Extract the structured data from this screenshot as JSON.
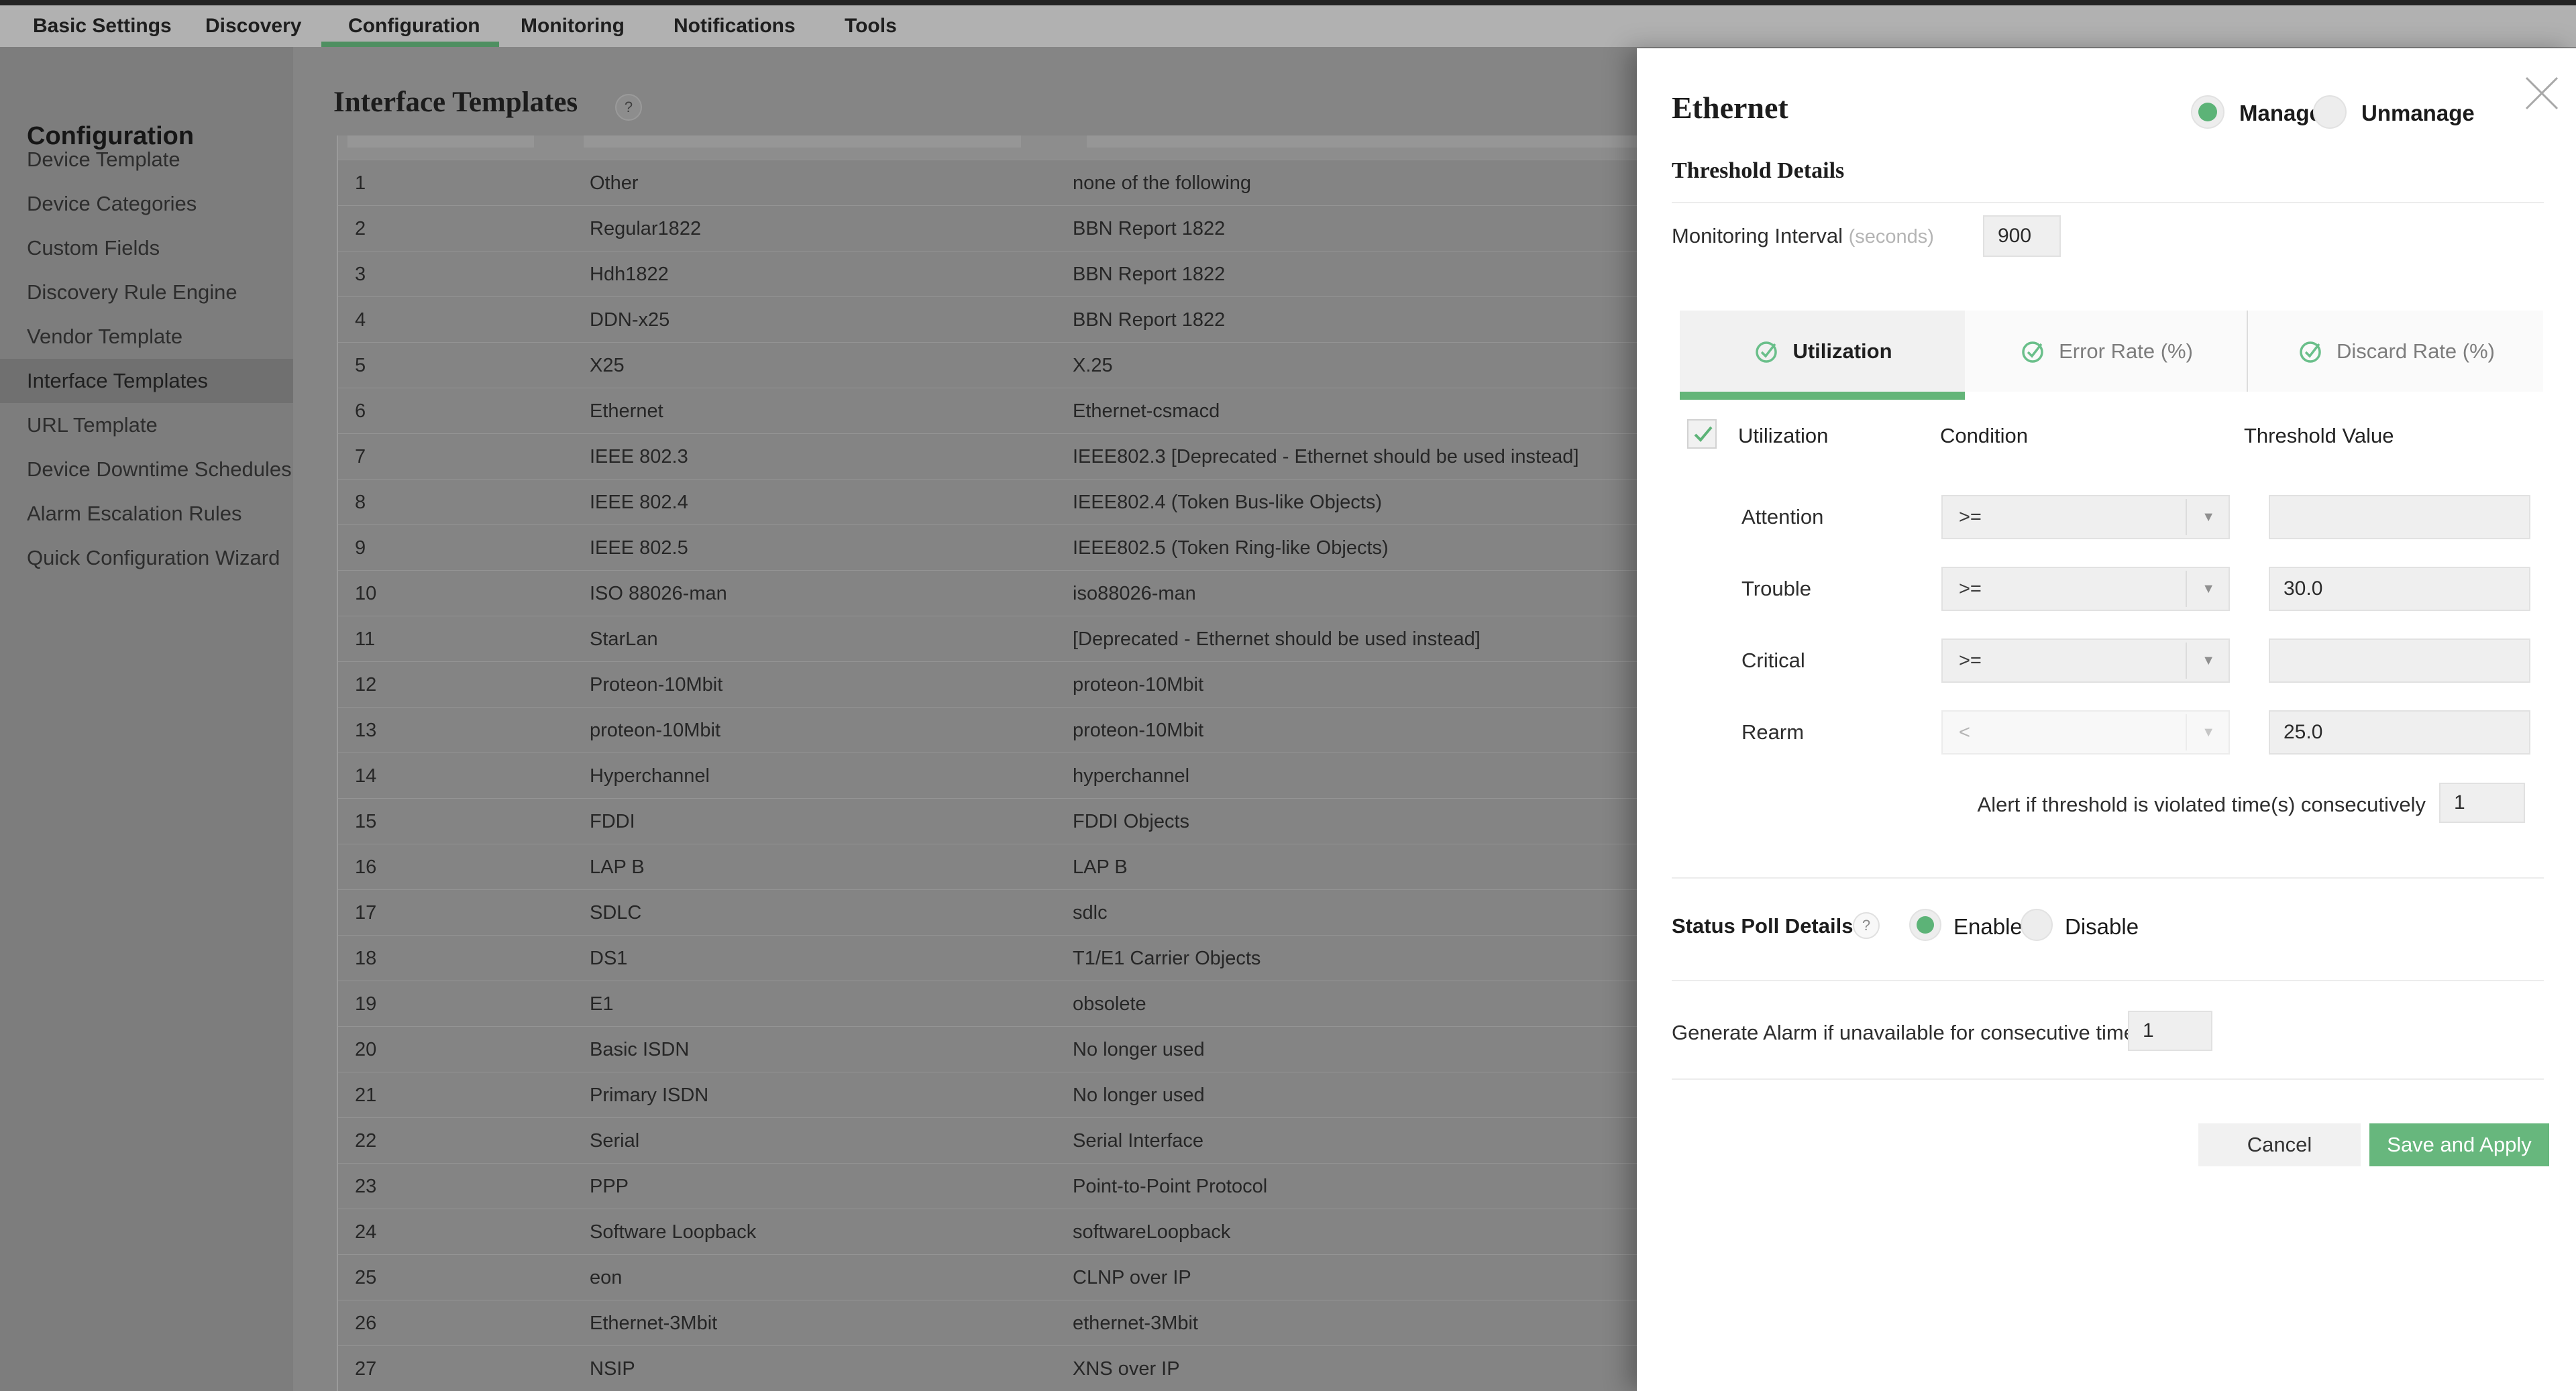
{
  "topnav": {
    "items": [
      {
        "label": "Basic Settings",
        "active": false
      },
      {
        "label": "Discovery",
        "active": false
      },
      {
        "label": "Configuration",
        "active": true
      },
      {
        "label": "Monitoring",
        "active": false
      },
      {
        "label": "Notifications",
        "active": false
      },
      {
        "label": "Tools",
        "active": false
      }
    ]
  },
  "sidebar": {
    "title": "Configuration",
    "items": [
      {
        "label": "Device Template",
        "selected": false
      },
      {
        "label": "Device Categories",
        "selected": false
      },
      {
        "label": "Custom Fields",
        "selected": false
      },
      {
        "label": "Discovery Rule Engine",
        "selected": false
      },
      {
        "label": "Vendor Template",
        "selected": false
      },
      {
        "label": "Interface Templates",
        "selected": true
      },
      {
        "label": "URL Template",
        "selected": false
      },
      {
        "label": "Device Downtime Schedules",
        "selected": false
      },
      {
        "label": "Alarm Escalation Rules",
        "selected": false
      },
      {
        "label": "Quick Configuration Wizard",
        "selected": false
      }
    ]
  },
  "main": {
    "title": "Interface Templates",
    "help_icon": "?"
  },
  "table": {
    "rows": [
      {
        "num": "1",
        "name": "Other",
        "desc": "none of the following"
      },
      {
        "num": "2",
        "name": "Regular1822",
        "desc": "BBN Report 1822"
      },
      {
        "num": "3",
        "name": "Hdh1822",
        "desc": "BBN Report 1822"
      },
      {
        "num": "4",
        "name": "DDN-x25",
        "desc": "BBN Report 1822"
      },
      {
        "num": "5",
        "name": "X25",
        "desc": "X.25"
      },
      {
        "num": "6",
        "name": "Ethernet",
        "desc": "Ethernet-csmacd"
      },
      {
        "num": "7",
        "name": "IEEE 802.3",
        "desc": "IEEE802.3 [Deprecated - Ethernet should be used instead]"
      },
      {
        "num": "8",
        "name": "IEEE 802.4",
        "desc": "IEEE802.4 (Token Bus-like Objects)"
      },
      {
        "num": "9",
        "name": "IEEE 802.5",
        "desc": "IEEE802.5 (Token Ring-like Objects)"
      },
      {
        "num": "10",
        "name": "ISO 88026-man",
        "desc": "iso88026-man"
      },
      {
        "num": "11",
        "name": "StarLan",
        "desc": "[Deprecated - Ethernet should be used instead]"
      },
      {
        "num": "12",
        "name": "Proteon-10Mbit",
        "desc": "proteon-10Mbit"
      },
      {
        "num": "13",
        "name": "proteon-10Mbit",
        "desc": "proteon-10Mbit"
      },
      {
        "num": "14",
        "name": "Hyperchannel",
        "desc": "hyperchannel"
      },
      {
        "num": "15",
        "name": "FDDI",
        "desc": "FDDI Objects"
      },
      {
        "num": "16",
        "name": "LAP B",
        "desc": "LAP B"
      },
      {
        "num": "17",
        "name": "SDLC",
        "desc": "sdlc"
      },
      {
        "num": "18",
        "name": "DS1",
        "desc": "T1/E1 Carrier Objects"
      },
      {
        "num": "19",
        "name": "E1",
        "desc": "obsolete"
      },
      {
        "num": "20",
        "name": "Basic ISDN",
        "desc": "No longer used"
      },
      {
        "num": "21",
        "name": "Primary ISDN",
        "desc": "No longer used"
      },
      {
        "num": "22",
        "name": "Serial",
        "desc": "Serial Interface"
      },
      {
        "num": "23",
        "name": "PPP",
        "desc": "Point-to-Point Protocol"
      },
      {
        "num": "24",
        "name": "Software Loopback",
        "desc": "softwareLoopback"
      },
      {
        "num": "25",
        "name": "eon",
        "desc": "CLNP over IP"
      },
      {
        "num": "26",
        "name": "Ethernet-3Mbit",
        "desc": "ethernet-3Mbit"
      },
      {
        "num": "27",
        "name": "NSIP",
        "desc": "XNS over IP"
      }
    ]
  },
  "panel": {
    "title": "Ethernet",
    "manage_options": [
      {
        "label": "Manage",
        "selected": true
      },
      {
        "label": "Unmanage",
        "selected": false
      }
    ],
    "section_title": "Threshold Details",
    "monitoring_interval": {
      "label": "Monitoring Interval",
      "unit": "(seconds)",
      "value": "900"
    },
    "tabs": [
      {
        "label": "Utilization",
        "active": true
      },
      {
        "label": "Error Rate (%)",
        "active": false
      },
      {
        "label": "Discard Rate (%)",
        "active": false
      }
    ],
    "metric": {
      "checkbox_label": "Utilization",
      "checked": true,
      "col_condition": "Condition",
      "col_threshold": "Threshold Value"
    },
    "thresholds": [
      {
        "label": "Attention",
        "condition": ">=",
        "value": "",
        "disabled": false
      },
      {
        "label": "Trouble",
        "condition": ">=",
        "value": "30.0",
        "disabled": false
      },
      {
        "label": "Critical",
        "condition": ">=",
        "value": "",
        "disabled": false
      },
      {
        "label": "Rearm",
        "condition": "<",
        "value": "25.0",
        "disabled": true
      }
    ],
    "alert_row": {
      "label": "Alert if threshold is violated time(s) consecutively",
      "value": "1"
    },
    "status_poll": {
      "label": "Status Poll Details",
      "help": "?",
      "options": [
        {
          "label": "Enable",
          "selected": true
        },
        {
          "label": "Disable",
          "selected": false
        }
      ]
    },
    "generate_alarm": {
      "label": "Generate Alarm if unavailable for consecutive time(s)",
      "value": "1"
    },
    "buttons": {
      "cancel": "Cancel",
      "save": "Save and Apply"
    }
  },
  "colors": {
    "accent_green": "#67b77d",
    "tab_underline_green": "#63b578",
    "radio_green": "#5cb377",
    "save_button_green": "#67b77d",
    "nav_active_underline": "#4f8f61"
  }
}
